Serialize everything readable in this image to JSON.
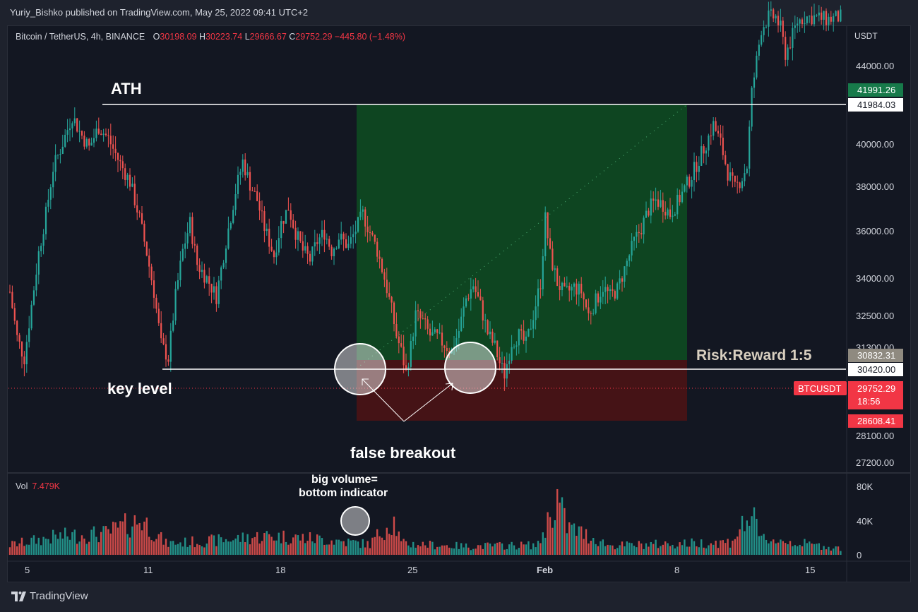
{
  "header": {
    "publisher": "Yuriy_Bishko published on TradingView.com, May 25, 2022 09:41 UTC+2"
  },
  "legend": {
    "symbol": "Bitcoin / TetherUS, 4h, BINANCE",
    "o_label": "O",
    "o_value": "30198.09",
    "h_label": "H",
    "h_value": "30223.74",
    "l_label": "L",
    "l_value": "29666.67",
    "c_label": "C",
    "c_value": "29752.29",
    "change": "−445.80 (−1.48%)"
  },
  "volume_legend": {
    "label": "Vol",
    "value": "7.479K"
  },
  "price_axis": {
    "unit": "USDT",
    "ticks": [
      "44000.00",
      "40000.00",
      "38000.00",
      "36000.00",
      "34000.00",
      "32500.00",
      "31300.00",
      "28100.00",
      "27200.00"
    ],
    "volume_ticks": [
      "80K",
      "40K",
      "0"
    ]
  },
  "time_axis": {
    "ticks": [
      "5",
      "11",
      "18",
      "25",
      "Feb",
      "8",
      "15"
    ]
  },
  "price_labels": {
    "target": "41991.26",
    "ath": "41984.03",
    "entry": "30832.31",
    "key_level": "30420.00",
    "symbol_tag": "BTCUSDT",
    "last_price": "29752.29",
    "countdown": "18:56",
    "stop": "28608.41"
  },
  "annotations": {
    "ath": "ATH",
    "key_level": "key level",
    "false_breakout": "false breakout",
    "volume_note_1": "big volume=",
    "volume_note_2": "bottom indicator",
    "risk_reward": "Risk:Reward 1:5"
  },
  "footer": {
    "brand": "TradingView"
  },
  "colors": {
    "up": "#26a69a",
    "down": "#ef5350",
    "profit_zone": "#0e4a22",
    "loss_zone": "#4a1316",
    "price_tag_red": "#f23645",
    "target_tag": "#177a4a"
  },
  "chart_data": {
    "type": "candlestick",
    "symbol": "Bitcoin / TetherUS",
    "interval": "4h",
    "exchange": "BINANCE",
    "x_ticks": [
      "5",
      "11",
      "18",
      "25",
      "Feb",
      "8",
      "15"
    ],
    "y_ticks": [
      44000,
      40000,
      38000,
      36000,
      34000,
      32500,
      31300,
      28100,
      27200
    ],
    "levels": {
      "ath": 41984.03,
      "key_level": 30420.0
    },
    "position": {
      "entry": 30832.31,
      "stop": 28608.41,
      "target": 41991.26,
      "risk_reward": "1:5"
    },
    "ohlc_last": {
      "open": 30198.09,
      "high": 30223.74,
      "low": 29666.67,
      "close": 29752.29
    },
    "price_path": [
      [
        0,
        33800
      ],
      [
        3,
        31800
      ],
      [
        6,
        30900
      ],
      [
        9,
        33200
      ],
      [
        12,
        35500
      ],
      [
        15,
        37200
      ],
      [
        18,
        39200
      ],
      [
        22,
        40300
      ],
      [
        26,
        41500
      ],
      [
        29,
        40800
      ],
      [
        33,
        40100
      ],
      [
        37,
        41000
      ],
      [
        41,
        40500
      ],
      [
        45,
        39600
      ],
      [
        50,
        38600
      ],
      [
        54,
        37000
      ],
      [
        57,
        35500
      ],
      [
        60,
        33800
      ],
      [
        63,
        31500
      ],
      [
        66,
        30900
      ],
      [
        69,
        33600
      ],
      [
        72,
        35600
      ],
      [
        75,
        36800
      ],
      [
        78,
        35000
      ],
      [
        82,
        34400
      ],
      [
        86,
        33600
      ],
      [
        90,
        36000
      ],
      [
        94,
        38200
      ],
      [
        97,
        39500
      ],
      [
        100,
        38500
      ],
      [
        103,
        37800
      ],
      [
        106,
        36600
      ],
      [
        110,
        35400
      ],
      [
        113,
        36800
      ],
      [
        116,
        37500
      ],
      [
        119,
        36400
      ],
      [
        122,
        35600
      ],
      [
        125,
        35200
      ],
      [
        128,
        36000
      ],
      [
        131,
        36400
      ],
      [
        134,
        35600
      ],
      [
        137,
        36200
      ],
      [
        141,
        35800
      ],
      [
        144,
        36500
      ],
      [
        147,
        37200
      ],
      [
        150,
        36400
      ],
      [
        153,
        35600
      ],
      [
        156,
        34400
      ],
      [
        159,
        33000
      ],
      [
        161,
        31900
      ],
      [
        163,
        31200
      ],
      [
        165,
        30300
      ],
      [
        167,
        31400
      ],
      [
        169,
        32800
      ],
      [
        172,
        32500
      ],
      [
        175,
        31900
      ],
      [
        178,
        31800
      ],
      [
        181,
        31500
      ],
      [
        184,
        31200
      ],
      [
        187,
        32100
      ],
      [
        190,
        33500
      ],
      [
        193,
        34100
      ],
      [
        196,
        33200
      ],
      [
        199,
        32000
      ],
      [
        202,
        31400
      ],
      [
        204,
        30700
      ],
      [
        206,
        30200
      ],
      [
        209,
        31600
      ],
      [
        212,
        31900
      ],
      [
        215,
        31500
      ],
      [
        218,
        32800
      ],
      [
        221,
        34200
      ],
      [
        223,
        37000
      ],
      [
        225,
        35400
      ],
      [
        228,
        34200
      ],
      [
        231,
        33700
      ],
      [
        235,
        34000
      ],
      [
        238,
        33800
      ],
      [
        241,
        32800
      ],
      [
        244,
        33400
      ],
      [
        247,
        34000
      ],
      [
        250,
        33600
      ],
      [
        253,
        33900
      ],
      [
        256,
        34800
      ],
      [
        260,
        36000
      ],
      [
        263,
        36600
      ],
      [
        266,
        37400
      ],
      [
        269,
        37800
      ],
      [
        272,
        37600
      ],
      [
        275,
        37200
      ],
      [
        278,
        37700
      ],
      [
        281,
        38300
      ],
      [
        284,
        38900
      ],
      [
        287,
        39600
      ],
      [
        290,
        40300
      ],
      [
        293,
        41100
      ],
      [
        296,
        40300
      ],
      [
        299,
        39000
      ],
      [
        302,
        38300
      ],
      [
        305,
        38800
      ],
      [
        307,
        39300
      ],
      [
        309,
        42500
      ],
      [
        311,
        43900
      ],
      [
        313,
        45300
      ],
      [
        316,
        45800
      ],
      [
        319,
        45800
      ],
      [
        321,
        45300
      ],
      [
        323,
        44200
      ],
      [
        325,
        44700
      ],
      [
        328,
        45600
      ],
      [
        331,
        45800
      ],
      [
        335,
        45800
      ],
      [
        340,
        45700
      ],
      [
        346,
        45800
      ]
    ],
    "volume_path": [
      [
        0,
        14
      ],
      [
        20,
        26
      ],
      [
        40,
        30
      ],
      [
        55,
        50
      ],
      [
        65,
        16
      ],
      [
        75,
        18
      ],
      [
        85,
        20
      ],
      [
        108,
        27
      ],
      [
        130,
        22
      ],
      [
        150,
        15
      ],
      [
        157,
        42
      ],
      [
        160,
        48
      ],
      [
        163,
        16
      ],
      [
        190,
        12
      ],
      [
        220,
        14
      ],
      [
        228,
        80
      ],
      [
        232,
        40
      ],
      [
        250,
        13
      ],
      [
        300,
        18
      ],
      [
        309,
        58
      ],
      [
        312,
        24
      ],
      [
        330,
        16
      ],
      [
        346,
        9
      ]
    ]
  }
}
